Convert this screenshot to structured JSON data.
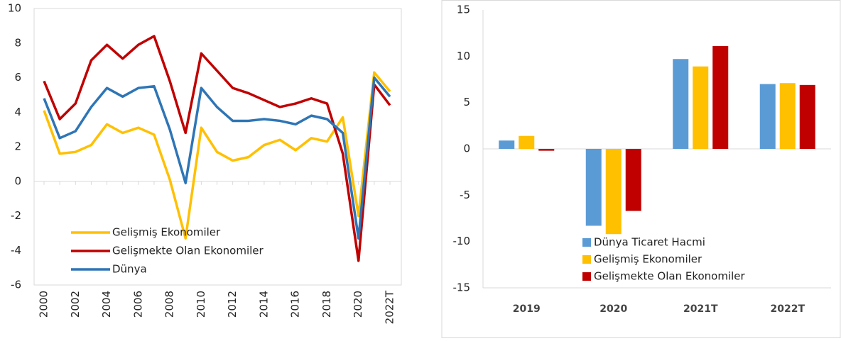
{
  "chart_data": [
    {
      "type": "line",
      "categories": [
        "2000",
        null,
        "2002",
        null,
        "2004",
        null,
        "2006",
        null,
        "2008",
        null,
        "2010",
        null,
        "2012",
        null,
        "2014",
        null,
        "2016",
        null,
        "2018",
        null,
        "2020",
        null,
        "2022T"
      ],
      "series": [
        {
          "name": "Gelişmiş Ekonomiler",
          "color": "#ffc000",
          "values": [
            4.1,
            1.6,
            1.7,
            2.1,
            3.3,
            2.8,
            3.1,
            2.7,
            0.1,
            -3.3,
            3.1,
            1.7,
            1.2,
            1.4,
            2.1,
            2.4,
            1.8,
            2.5,
            2.3,
            3.7,
            -2.0,
            6.3,
            5.2
          ]
        },
        {
          "name": "Gelişmekte Olan Ekonomiler",
          "color": "#c00000",
          "values": [
            5.8,
            3.6,
            4.5,
            7.0,
            7.9,
            7.1,
            7.9,
            8.4,
            5.8,
            2.8,
            7.4,
            6.4,
            5.4,
            5.1,
            4.7,
            4.3,
            4.5,
            4.8,
            4.5,
            1.6,
            -4.6,
            5.6,
            4.4
          ]
        },
        {
          "name": "Dünya",
          "color": "#2e75b6",
          "values": [
            4.8,
            2.5,
            2.9,
            4.3,
            5.4,
            4.9,
            5.4,
            5.5,
            3.0,
            -0.1,
            5.4,
            4.3,
            3.5,
            3.5,
            3.6,
            3.5,
            3.3,
            3.8,
            3.6,
            2.8,
            -3.3,
            6.0,
            4.9
          ]
        }
      ],
      "ylim": [
        -6,
        10
      ],
      "yticks": [
        -6,
        -4,
        -2,
        0,
        2,
        4,
        6,
        8,
        10
      ],
      "legend": "lower left"
    },
    {
      "type": "bar",
      "categories": [
        "2019",
        "2020",
        "2021T",
        "2022T"
      ],
      "series": [
        {
          "name": "Dünya Ticaret Hacmi",
          "color": "#5b9bd5",
          "values": [
            0.9,
            -8.3,
            9.7,
            7.0
          ]
        },
        {
          "name": "Gelişmiş Ekonomiler",
          "color": "#ffc000",
          "values": [
            1.4,
            -9.2,
            8.9,
            7.1
          ]
        },
        {
          "name": "Gelişmekte Olan Ekonomiler",
          "color": "#c00000",
          "values": [
            -0.2,
            -6.7,
            11.1,
            6.9
          ]
        }
      ],
      "ylim": [
        -15,
        15
      ],
      "yticks": [
        -15,
        -10,
        -5,
        0,
        5,
        10,
        15
      ],
      "legend": "lower left"
    }
  ]
}
